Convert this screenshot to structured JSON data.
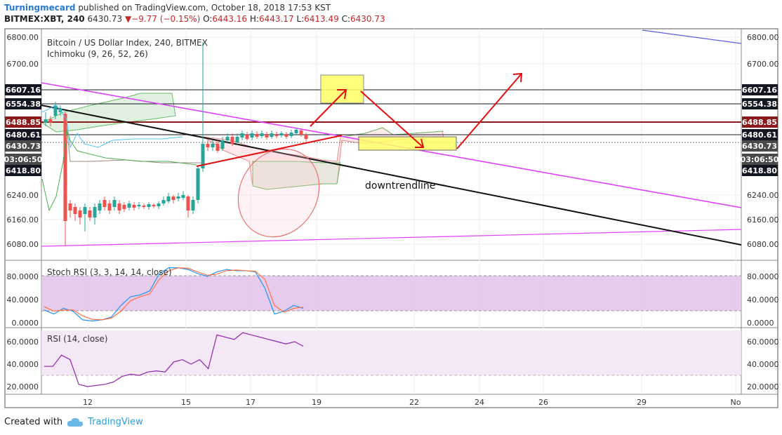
{
  "header": {
    "author": "Turningmecard",
    "published": "published on TradingView.com, October 18, 2018 17:53 KST",
    "symbol": "BITMEX:XBT, 240",
    "last": "6430.73",
    "change": "−9.77 (−0.15%)",
    "o_label": "O:",
    "o": "6443.16",
    "h_label": "H:",
    "h": "6443.17",
    "l_label": "L:",
    "l": "6413.49",
    "c_label": "C:",
    "c": "6430.73"
  },
  "footer": {
    "created_with": "Created with",
    "brand": "TradingView"
  },
  "chart_data": {
    "type": "candlestick",
    "title": "Bitcoin / US Dollar Index, 240, BITMEX",
    "indicator": "Ichimoku (9, 26, 52, 26)",
    "annotation": "downtrendline",
    "y_ticks": [
      "6800.00",
      "6700.00",
      "6240.00",
      "6160.00",
      "6080.00"
    ],
    "x_ticks": [
      "12",
      "15",
      "17",
      "19",
      "22",
      "24",
      "26",
      "29",
      "No"
    ],
    "price_tags": [
      {
        "text": "6607.16",
        "color": "#131722"
      },
      {
        "text": "6554.38",
        "color": "#131722"
      },
      {
        "text": "6488.85",
        "color": "#8b1a1a"
      },
      {
        "text": "6480.61",
        "color": "#131722"
      },
      {
        "text": "6430.73",
        "color": "#4a4a4a"
      },
      {
        "text": "03:06:50",
        "color": "#4a4a4a"
      },
      {
        "text": "6418.80",
        "color": "#131722"
      }
    ],
    "stoch_rsi": {
      "label": "Stoch RSI (3, 3, 14, 14, close)",
      "ticks": [
        "80.0000",
        "40.0000",
        "0.0000"
      ],
      "k": [
        22,
        15,
        25,
        20,
        5,
        3,
        5,
        10,
        30,
        45,
        48,
        55,
        85,
        95,
        95,
        92,
        85,
        80,
        88,
        92,
        90,
        90,
        88,
        60,
        15,
        20,
        30,
        25
      ],
      "d": [
        28,
        20,
        22,
        22,
        12,
        6,
        5,
        8,
        20,
        38,
        45,
        50,
        75,
        90,
        95,
        94,
        88,
        82,
        84,
        90,
        91,
        90,
        89,
        75,
        30,
        18,
        25,
        27
      ]
    },
    "rsi": {
      "label": "RSI (14, close)",
      "ticks": [
        "60.0000",
        "40.0000",
        "20.0000"
      ],
      "values": [
        38,
        38,
        48,
        44,
        22,
        20,
        21,
        22,
        24,
        29,
        31,
        30,
        33,
        34,
        33,
        42,
        44,
        40,
        44,
        36,
        66,
        64,
        62,
        68,
        66,
        64,
        62,
        60,
        58,
        60,
        56
      ]
    }
  },
  "colors": {
    "up": "#26a69a",
    "down": "#ef5350",
    "magenta": "#e040fb",
    "purple_band": "#e1bee7",
    "red_arrow": "#e01010",
    "highlight": "#ffff66"
  }
}
